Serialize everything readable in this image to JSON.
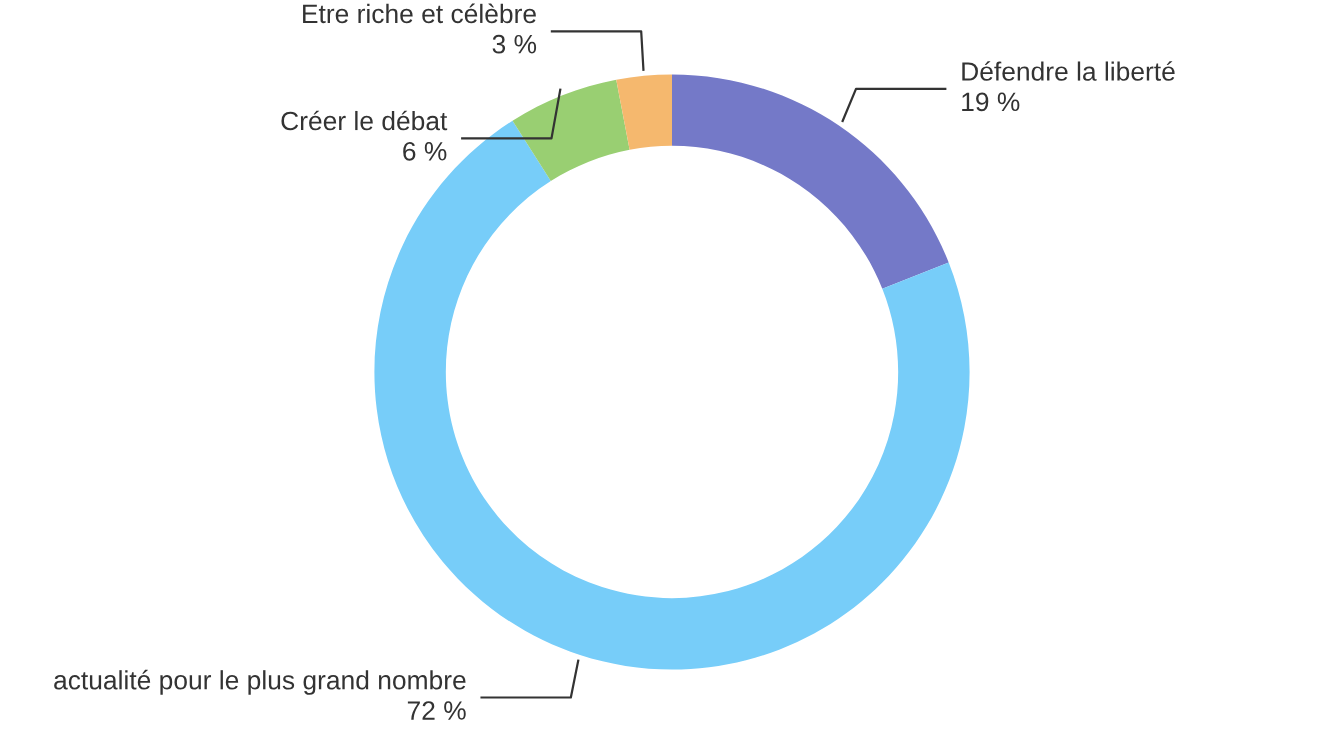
{
  "chart_data": {
    "type": "donut",
    "categories": [
      "Défendre la liberté",
      "actualité pour le plus grand nombre",
      "Créer le débat",
      "Etre riche et célèbre"
    ],
    "values": [
      19,
      72,
      6,
      3
    ],
    "value_labels": [
      "19 %",
      "72 %",
      "6 %",
      "3 %"
    ],
    "colors": [
      "#7479c8",
      "#77cdf9",
      "#99cf72",
      "#f5b86e"
    ],
    "legend": false
  }
}
